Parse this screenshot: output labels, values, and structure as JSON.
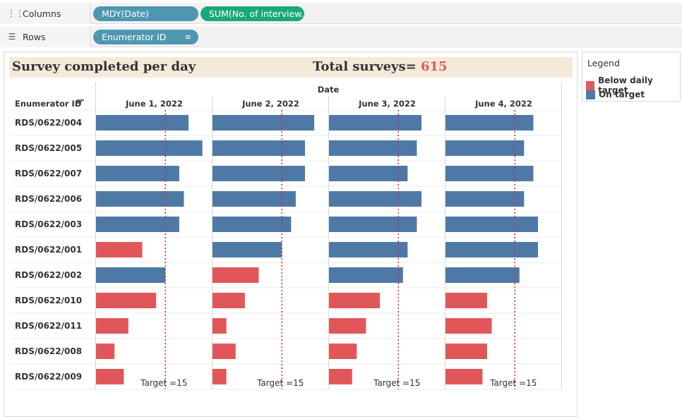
{
  "shelves": {
    "columns": {
      "label": "Columns",
      "pills": [
        {
          "text": "MDY(Date)",
          "color": "#4e97b0"
        },
        {
          "text": "SUM(No. of interview..",
          "color": "#1aa87a"
        }
      ]
    },
    "rows": {
      "label": "Rows",
      "pills": [
        {
          "text": "Enumerator ID",
          "color": "#4e97b0"
        }
      ]
    }
  },
  "header": {
    "title": "Survey completed per day",
    "total_label": "Total surveys=",
    "total_value": "615"
  },
  "legend": {
    "title": "Legend",
    "items": [
      {
        "label": "Below daily target",
        "color": "#e15759"
      },
      {
        "label": "On target",
        "color": "#4e79a7"
      }
    ]
  },
  "chart_data": {
    "type": "bar",
    "orientation": "horizontal",
    "column_header": "Date",
    "row_header": "Enumerator ID",
    "dates": [
      "June 1, 2022",
      "June 2, 2022",
      "June 3, 2022",
      "June 4, 2022"
    ],
    "enumerators": [
      "RDS/0622/004",
      "RDS/0622/005",
      "RDS/0622/007",
      "RDS/0622/006",
      "RDS/0622/003",
      "RDS/0622/001",
      "RDS/0622/002",
      "RDS/0622/010",
      "RDS/0622/011",
      "RDS/0622/008",
      "RDS/0622/009"
    ],
    "values": [
      [
        20,
        22,
        20,
        19
      ],
      [
        23,
        20,
        19,
        17
      ],
      [
        18,
        20,
        17,
        19
      ],
      [
        19,
        18,
        20,
        17
      ],
      [
        18,
        17,
        19,
        20
      ],
      [
        10,
        15,
        17,
        20
      ],
      [
        15,
        10,
        16,
        16
      ],
      [
        13,
        7,
        11,
        9
      ],
      [
        7,
        3,
        8,
        10
      ],
      [
        4,
        5,
        6,
        9
      ],
      [
        6,
        3,
        5,
        8
      ]
    ],
    "target": 15,
    "target_label": "Target =15",
    "xlim": [
      0,
      25
    ],
    "colors": {
      "below": "#e15759",
      "on_target": "#4e79a7",
      "target_line": "#cc2b33"
    }
  }
}
